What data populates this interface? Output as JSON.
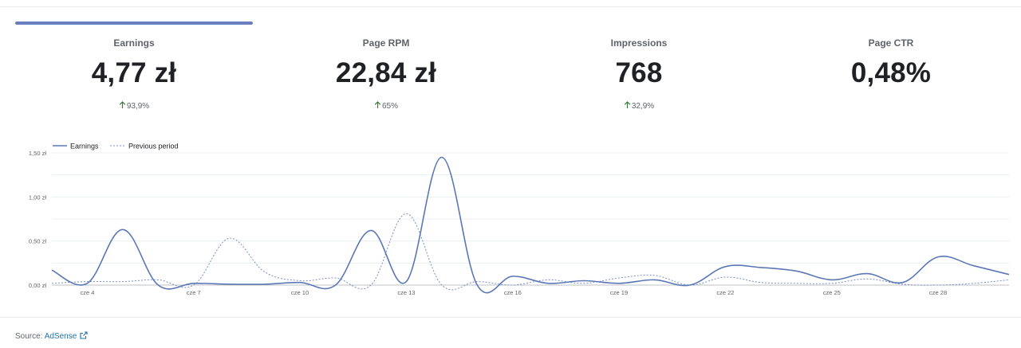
{
  "metrics": [
    {
      "label": "Earnings",
      "value": "4,77 zł",
      "delta": "93,9%",
      "selected": true
    },
    {
      "label": "Page RPM",
      "value": "22,84 zł",
      "delta": "65%"
    },
    {
      "label": "Impressions",
      "value": "768",
      "delta": "32,9%"
    },
    {
      "label": "Page CTR",
      "value": "0,48%",
      "delta": ""
    }
  ],
  "source": {
    "prefix": "Source:",
    "link_label": "AdSense",
    "icon": "external-link-icon"
  },
  "colors": {
    "accent": "#6a7fc1",
    "earnings_line": "#5b78b5",
    "previous_line": "#7b8ec4",
    "delta_arrow": "#3c7a3c"
  },
  "chart_data": {
    "type": "line",
    "legend_position": "top-left",
    "grid": true,
    "y_ticks": [
      "0,00 zł",
      "0,50 zł",
      "1,00 zł",
      "1,50 zł"
    ],
    "y_tick_values": [
      0,
      0.5,
      1.0,
      1.5
    ],
    "ylim": [
      0,
      1.5
    ],
    "x_tick_labels": [
      "cze 4",
      "cze 7",
      "cze 10",
      "cze 13",
      "cze 16",
      "cze 19",
      "cze 22",
      "cze 25",
      "cze 28"
    ],
    "x": [
      "cze 3",
      "cze 4",
      "cze 5",
      "cze 6",
      "cze 7",
      "cze 8",
      "cze 9",
      "cze 10",
      "cze 11",
      "cze 12",
      "cze 13",
      "cze 14",
      "cze 15",
      "cze 16",
      "cze 17",
      "cze 18",
      "cze 19",
      "cze 20",
      "cze 21",
      "cze 22",
      "cze 23",
      "cze 24",
      "cze 25",
      "cze 26",
      "cze 27",
      "cze 28",
      "cze 29",
      "cze 30"
    ],
    "series": [
      {
        "name": "Earnings",
        "style": "solid",
        "values": [
          0.17,
          0.02,
          0.63,
          0.0,
          0.02,
          0.01,
          0.01,
          0.03,
          0.0,
          0.62,
          0.04,
          1.45,
          0.0,
          0.1,
          0.02,
          0.05,
          0.02,
          0.06,
          0.0,
          0.21,
          0.2,
          0.16,
          0.06,
          0.13,
          0.03,
          0.32,
          0.22,
          0.12
        ]
      },
      {
        "name": "Previous period",
        "style": "dotted",
        "values": [
          0.02,
          0.04,
          0.04,
          0.06,
          0.0,
          0.53,
          0.15,
          0.05,
          0.08,
          0.0,
          0.81,
          0.0,
          0.04,
          0.0,
          0.06,
          0.02,
          0.08,
          0.11,
          0.0,
          0.09,
          0.03,
          0.02,
          0.02,
          0.07,
          0.01,
          0.0,
          0.02,
          0.06
        ]
      }
    ]
  }
}
